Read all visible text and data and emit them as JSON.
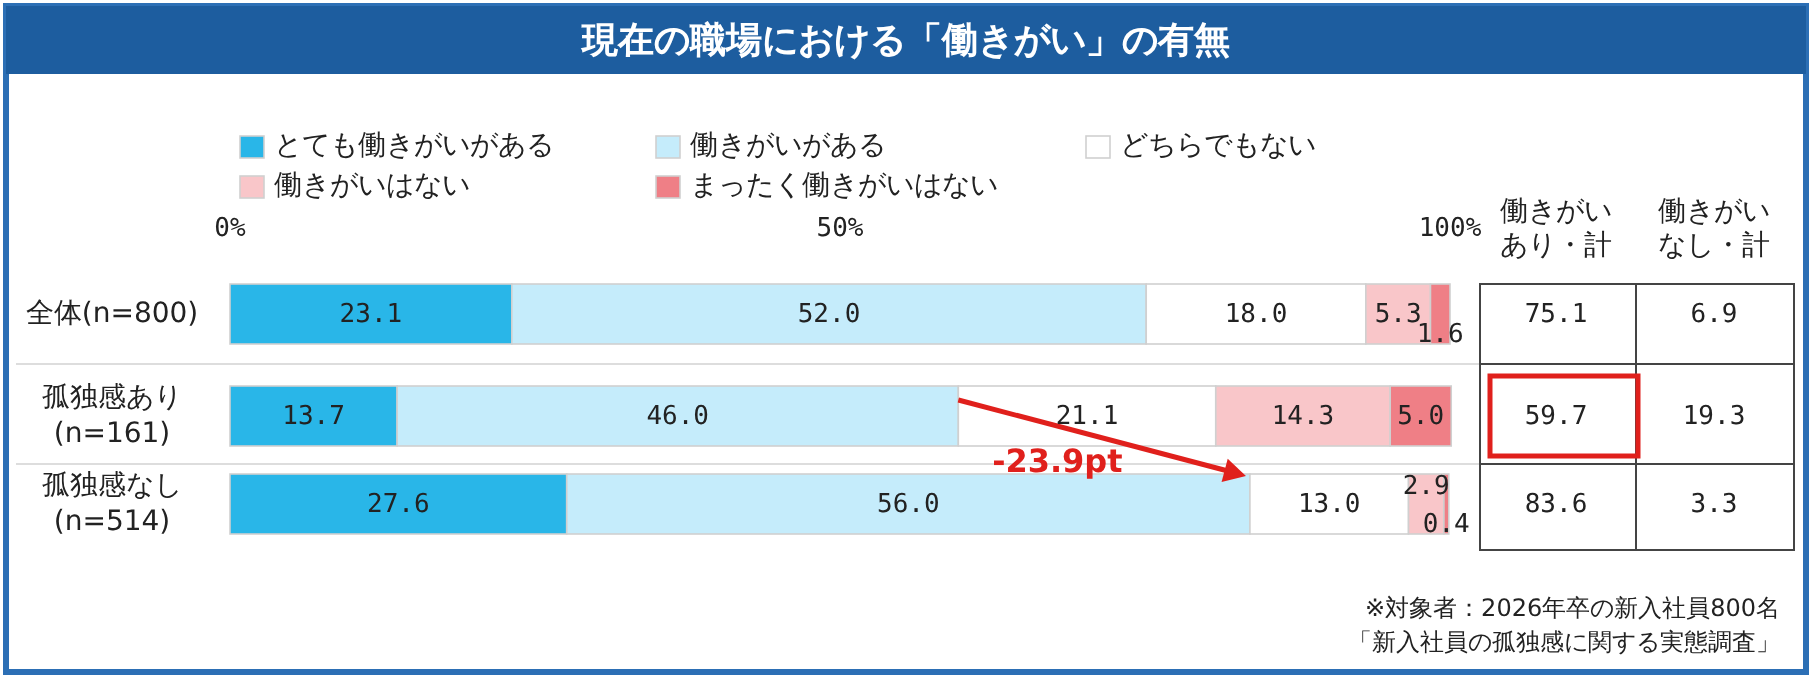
{
  "chart_data": {
    "type": "bar",
    "orientation": "horizontal",
    "stacked": true,
    "title": "現在の職場における「働きがい」の有無",
    "categories": [
      "全体(n=800)",
      "孤独感あり(n=161)",
      "孤独感なし(n=514)"
    ],
    "series": [
      {
        "name": "とても働きがいがある",
        "color": "#29b6e8",
        "values": [
          23.1,
          13.7,
          27.6
        ],
        "value_labels": [
          "23.1",
          "13.7",
          "27.6"
        ]
      },
      {
        "name": "働きがいがある",
        "color": "#c5ecfb",
        "values": [
          52.0,
          46.0,
          56.0
        ],
        "value_labels": [
          "52.0",
          "46.0",
          "56.0"
        ]
      },
      {
        "name": "どちらでもない",
        "color": "#ffffff",
        "values": [
          18.0,
          21.1,
          13.0
        ],
        "value_labels": [
          "18.0",
          "21.1",
          "13.0"
        ]
      },
      {
        "name": "働きがいはない",
        "color": "#f9c6c9",
        "values": [
          5.3,
          14.3,
          2.9
        ],
        "value_labels": [
          "5.3",
          "14.3",
          "2.9"
        ]
      },
      {
        "name": "まったく働きがいはない",
        "color": "#ef7f86",
        "values": [
          1.6,
          5.0,
          0.4
        ],
        "value_labels": [
          "1.6",
          "5.0",
          "0.4"
        ]
      }
    ],
    "xlim": [
      0,
      100
    ],
    "xticks": [
      {
        "value": 0,
        "label": "0%"
      },
      {
        "value": 50,
        "label": "50%"
      },
      {
        "value": 100,
        "label": "100%"
      }
    ],
    "legend": "top",
    "annotations": [
      "働きがいあり・計",
      "働きがいなし・計",
      "75.1",
      "6.9",
      "59.7",
      "19.3",
      "83.6",
      "3.3",
      "-23.9pt",
      "※対象者：2026年卒の新入社員800名",
      "「新入社員の孤独感に関する実態調査」"
    ]
  }
}
